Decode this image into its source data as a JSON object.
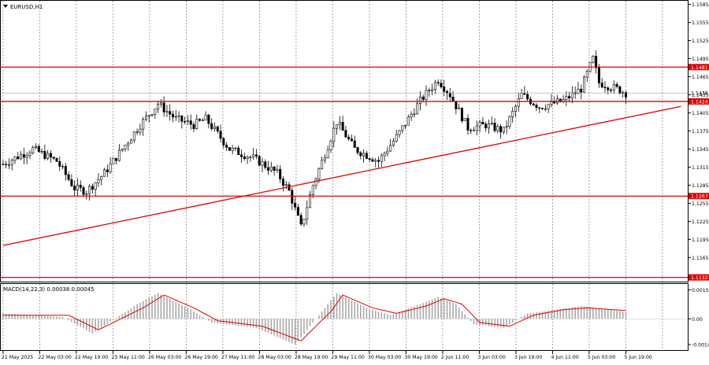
{
  "chart_data": [
    {
      "type": "candlestick",
      "title": "EURUSD,H1",
      "ylim": [
        1.1125,
        1.1591
      ],
      "y_ticks": [
        "1.1585",
        "1.1555",
        "1.1525",
        "1.1495",
        "1.1465",
        "1.1435",
        "1.1405",
        "1.1375",
        "1.1345",
        "1.1315",
        "1.1285",
        "1.1255",
        "1.1225",
        "1.1195",
        "1.1165"
      ],
      "x_ticks": [
        "21 May 2025",
        "22 May 03:00",
        "22 May 19:00",
        "23 May 11:00",
        "26 May 03:00",
        "26 May 19:00",
        "27 May 11:00",
        "28 May 03:00",
        "28 May 19:00",
        "29 May 11:00",
        "30 May 03:00",
        "30 May 19:00",
        "2 Jun 11:00",
        "3 Jun 03:00",
        "3 Jun 19:00",
        "4 Jun 11:00",
        "5 Jun 03:00",
        "5 Jun 19:00"
      ],
      "current_price": "1.1438",
      "grid": true,
      "levels": [
        {
          "label": "1.1481",
          "value": 1.1481
        },
        {
          "label": "1.1424",
          "value": 1.1424
        },
        {
          "label": "1.1267",
          "value": 1.1267
        },
        {
          "label": "1.1132",
          "value": 1.1132
        }
      ],
      "trendline": {
        "from": {
          "bar": 0,
          "value": 1.1185
        },
        "to": {
          "bar": 209,
          "value": 1.1397
        }
      },
      "price_path": [
        [
          0,
          1.132
        ],
        [
          10,
          1.1345
        ],
        [
          18,
          1.1325
        ],
        [
          24,
          1.128
        ],
        [
          28,
          1.1275
        ],
        [
          34,
          1.1305
        ],
        [
          40,
          1.1345
        ],
        [
          46,
          1.1385
        ],
        [
          52,
          1.142
        ],
        [
          58,
          1.1395
        ],
        [
          64,
          1.1385
        ],
        [
          68,
          1.1395
        ],
        [
          76,
          1.1345
        ],
        [
          84,
          1.133
        ],
        [
          92,
          1.1305
        ],
        [
          96,
          1.1275
        ],
        [
          100,
          1.1215
        ],
        [
          104,
          1.1285
        ],
        [
          112,
          1.139
        ],
        [
          118,
          1.1345
        ],
        [
          126,
          1.1325
        ],
        [
          132,
          1.1365
        ],
        [
          140,
          1.1425
        ],
        [
          146,
          1.146
        ],
        [
          150,
          1.1435
        ],
        [
          156,
          1.138
        ],
        [
          162,
          1.1385
        ],
        [
          168,
          1.1375
        ],
        [
          174,
          1.1435
        ],
        [
          180,
          1.1415
        ],
        [
          188,
          1.1425
        ],
        [
          194,
          1.1445
        ],
        [
          198,
          1.1495
        ],
        [
          200,
          1.1455
        ],
        [
          206,
          1.1445
        ],
        [
          209,
          1.1438
        ]
      ]
    },
    {
      "type": "bar",
      "title": "MACD(14,22,3) 0.00038 0.00045",
      "ylim": [
        -0.0017,
        0.0019
      ],
      "y_ticks": [
        "0.00158",
        "0.00",
        "-0.0014"
      ],
      "series": [
        {
          "values": [
            [
              0,
              0.0003
            ],
            [
              20,
              0.0001
            ],
            [
              30,
              -0.0008
            ],
            [
              45,
              0.0008
            ],
            [
              52,
              0.0014
            ],
            [
              62,
              0.0006
            ],
            [
              70,
              -0.0002
            ],
            [
              85,
              -0.0005
            ],
            [
              98,
              -0.0014
            ],
            [
              108,
              0.0006
            ],
            [
              112,
              0.0014
            ],
            [
              122,
              0.0006
            ],
            [
              130,
              0.0002
            ],
            [
              140,
              0.0008
            ],
            [
              146,
              0.0012
            ],
            [
              152,
              0.0008
            ],
            [
              158,
              -0.0003
            ],
            [
              168,
              -0.0005
            ],
            [
              176,
              0.0003
            ],
            [
              186,
              0.0005
            ],
            [
              194,
              0.0007
            ],
            [
              209,
              0.00038
            ]
          ]
        }
      ],
      "signal_line": [
        [
          0,
          0.0002
        ],
        [
          22,
          0.0002
        ],
        [
          32,
          -0.0006
        ],
        [
          47,
          0.0006
        ],
        [
          54,
          0.0013
        ],
        [
          64,
          0.0006
        ],
        [
          72,
          -0.0001
        ],
        [
          87,
          -0.0004
        ],
        [
          100,
          -0.0012
        ],
        [
          110,
          0.0004
        ],
        [
          114,
          0.0013
        ],
        [
          124,
          0.0006
        ],
        [
          132,
          0.0003
        ],
        [
          142,
          0.0007
        ],
        [
          148,
          0.0011
        ],
        [
          154,
          0.0008
        ],
        [
          160,
          -0.0002
        ],
        [
          170,
          -0.0004
        ],
        [
          178,
          0.0002
        ],
        [
          188,
          0.0005
        ],
        [
          196,
          0.0006
        ],
        [
          209,
          0.00045
        ]
      ]
    }
  ]
}
